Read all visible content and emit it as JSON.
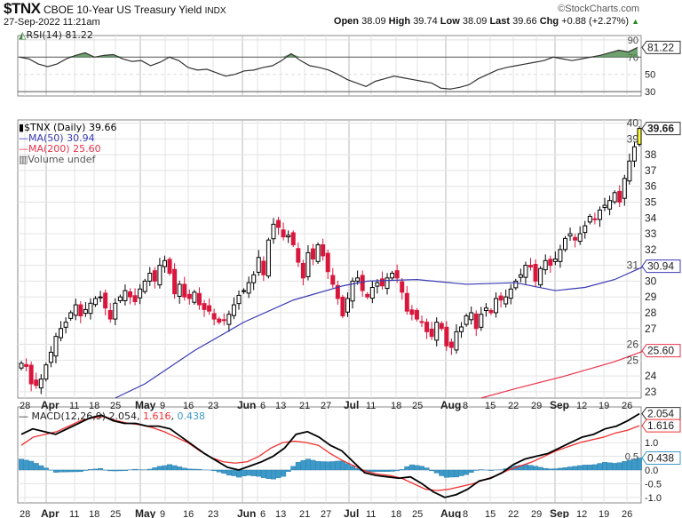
{
  "header": {
    "symbol": "$TNX",
    "description": "CBOE 10-Year US Treasury Yield",
    "exchange": "INDX",
    "timestamp": "27-Sep-2022 11:21am",
    "site": "©StockCharts.com",
    "open_label": "Open",
    "open": "38.09",
    "high_label": "High",
    "high": "39.74",
    "low_label": "Low",
    "low": "38.09",
    "last_label": "Last",
    "last": "39.66",
    "chg_label": "Chg",
    "chg": "+0.88 (+2.27%)",
    "chg_arrow": "▲"
  },
  "colors": {
    "up": "#000000",
    "down": "#d9163c",
    "ma50": "#3939b3",
    "ma200": "#e8344c",
    "macd": "#000000",
    "signal": "#f03030",
    "hist": "#3d9ac8",
    "rsi_fill": "#4a8a4a",
    "last_bar": "#ffff33"
  },
  "chart_data": [
    {
      "type": "line",
      "name": "RSI",
      "legend": "RSI(14) 81.22",
      "last_label": "81.22",
      "yticks": [
        "90",
        "70",
        "50",
        "30"
      ],
      "ylim": [
        25,
        95
      ],
      "values": [
        70,
        68,
        62,
        59,
        62,
        68,
        72,
        75,
        70,
        72,
        73,
        68,
        65,
        66,
        60,
        64,
        70,
        66,
        58,
        55,
        56,
        52,
        48,
        50,
        54,
        55,
        58,
        60,
        66,
        74,
        66,
        60,
        58,
        55,
        50,
        44,
        40,
        36,
        42,
        45,
        48,
        46,
        44,
        42,
        40,
        34,
        33,
        35,
        38,
        45,
        50,
        55,
        58,
        60,
        62,
        64,
        66,
        70,
        68,
        66,
        68,
        70,
        72,
        75,
        78,
        76,
        81.22
      ]
    },
    {
      "type": "candlestick",
      "name": "$TNX (Daily)",
      "legend": {
        "price": "$TNX (Daily) 39.66",
        "ma50": "MA(50) 30.94",
        "ma200": "MA(200) 25.60",
        "volume": "Volume undef"
      },
      "last_labels": {
        "price": "39.66",
        "ma50": "30.94",
        "ma200": "25.60"
      },
      "yticks": [
        "23",
        "24",
        "25",
        "26",
        "27",
        "28",
        "29",
        "30",
        "31",
        "32",
        "33",
        "34",
        "35",
        "36",
        "37",
        "38",
        "39",
        "40"
      ],
      "ylim": [
        22.6,
        40.2
      ],
      "closes": [
        24.8,
        24.6,
        23.5,
        23.4,
        23.8,
        24.7,
        25.5,
        26.5,
        27.0,
        27.4,
        28.0,
        28.5,
        27.8,
        28.2,
        28.6,
        28.9,
        29.0,
        28.3,
        27.6,
        28.6,
        29.0,
        29.4,
        29.0,
        28.7,
        29.5,
        30.0,
        30.5,
        30.0,
        31.0,
        31.3,
        30.5,
        29.2,
        29.8,
        29.0,
        28.9,
        29.3,
        28.5,
        28.2,
        28.1,
        27.6,
        27.4,
        27.5,
        27.9,
        28.5,
        29.1,
        29.4,
        29.9,
        30.4,
        31.5,
        30.4,
        32.6,
        33.6,
        33.4,
        32.8,
        32.9,
        32.3,
        31.2,
        30.2,
        31.8,
        31.4,
        32.3,
        31.6,
        30.6,
        29.8,
        28.9,
        27.8,
        28.9,
        30.0,
        30.2,
        29.4,
        29.0,
        29.6,
        29.9,
        29.7,
        30.2,
        30.5,
        30.2,
        29.3,
        28.1,
        27.9,
        27.6,
        27.4,
        26.8,
        26.5,
        27.4,
        27.0,
        25.9,
        25.8,
        26.8,
        27.1,
        27.8,
        28.0,
        27.0,
        27.9,
        28.3,
        28.0,
        28.9,
        28.8,
        29.0,
        29.5,
        30.0,
        30.4,
        31.0,
        30.9,
        30.0,
        30.8,
        31.3,
        31.0,
        31.4,
        32.0,
        32.7,
        33.0,
        32.6,
        33.0,
        33.5,
        34.1,
        33.9,
        34.5,
        34.8,
        35.1,
        35.6,
        35.0,
        36.5,
        37.6,
        38.5,
        39.66
      ],
      "ma50": [
        [
          19,
          22.6
        ],
        [
          25,
          23.5
        ],
        [
          35,
          25.6
        ],
        [
          45,
          27.4
        ],
        [
          55,
          28.8
        ],
        [
          65,
          29.7
        ],
        [
          70,
          30.0
        ],
        [
          80,
          30.1
        ],
        [
          90,
          29.8
        ],
        [
          100,
          29.9
        ],
        [
          108,
          29.4
        ],
        [
          114,
          29.6
        ],
        [
          120,
          30.1
        ],
        [
          126,
          30.94
        ]
      ],
      "ma200": [
        [
          93,
          22.6
        ],
        [
          100,
          23.2
        ],
        [
          110,
          24.0
        ],
        [
          120,
          24.9
        ],
        [
          126,
          25.6
        ]
      ]
    },
    {
      "type": "line",
      "name": "MACD",
      "legend": {
        "label": "MACD(12,26,9)",
        "macd": "2.054",
        "signal": "1.616",
        "hist": "0.438"
      },
      "yticks": [
        "1.0",
        "0.5",
        "0.0",
        "-0.5",
        "-1.0"
      ],
      "ylim": [
        -1.2,
        2.3
      ],
      "macd": [
        1.3,
        1.5,
        1.4,
        1.3,
        1.5,
        1.7,
        1.9,
        2.0,
        1.8,
        1.7,
        1.7,
        1.6,
        1.6,
        1.5,
        1.2,
        0.9,
        0.6,
        0.35,
        0.1,
        0.0,
        0.15,
        0.3,
        0.5,
        0.8,
        1.3,
        1.4,
        1.2,
        0.9,
        0.7,
        0.3,
        -0.1,
        -0.2,
        -0.25,
        -0.3,
        -0.25,
        -0.5,
        -0.8,
        -1.0,
        -0.9,
        -0.7,
        -0.4,
        -0.3,
        -0.1,
        0.2,
        0.4,
        0.5,
        0.6,
        0.8,
        1.0,
        1.2,
        1.3,
        1.5,
        1.6,
        1.8,
        2.054
      ],
      "signal": [
        0.9,
        1.2,
        1.3,
        1.4,
        1.6,
        1.8,
        1.9,
        1.95,
        1.8,
        1.7,
        1.65,
        1.55,
        1.4,
        1.2,
        1.0,
        0.7,
        0.45,
        0.3,
        0.25,
        0.3,
        0.5,
        0.8,
        1.0,
        1.05,
        1.0,
        0.9,
        0.6,
        0.35,
        0.15,
        -0.05,
        -0.15,
        -0.2,
        -0.3,
        -0.5,
        -0.7,
        -0.75,
        -0.7,
        -0.6,
        -0.5,
        -0.35,
        -0.2,
        0.0,
        0.15,
        0.3,
        0.5,
        0.7,
        0.85,
        1.0,
        1.1,
        1.2,
        1.35,
        1.45,
        1.616
      ]
    }
  ],
  "x_axis": {
    "labels": [
      "28",
      "Apr",
      "11",
      "18",
      "25",
      "May",
      "9",
      "16",
      "23",
      "Jun",
      "6",
      "13",
      "21",
      "27",
      "Jul",
      "11",
      "18",
      "25",
      "Aug",
      "8",
      "15",
      "22",
      "29",
      "Sep",
      "12",
      "19",
      "26"
    ],
    "months": [
      "Apr",
      "May",
      "Jun",
      "Jul",
      "Aug",
      "Sep"
    ]
  }
}
